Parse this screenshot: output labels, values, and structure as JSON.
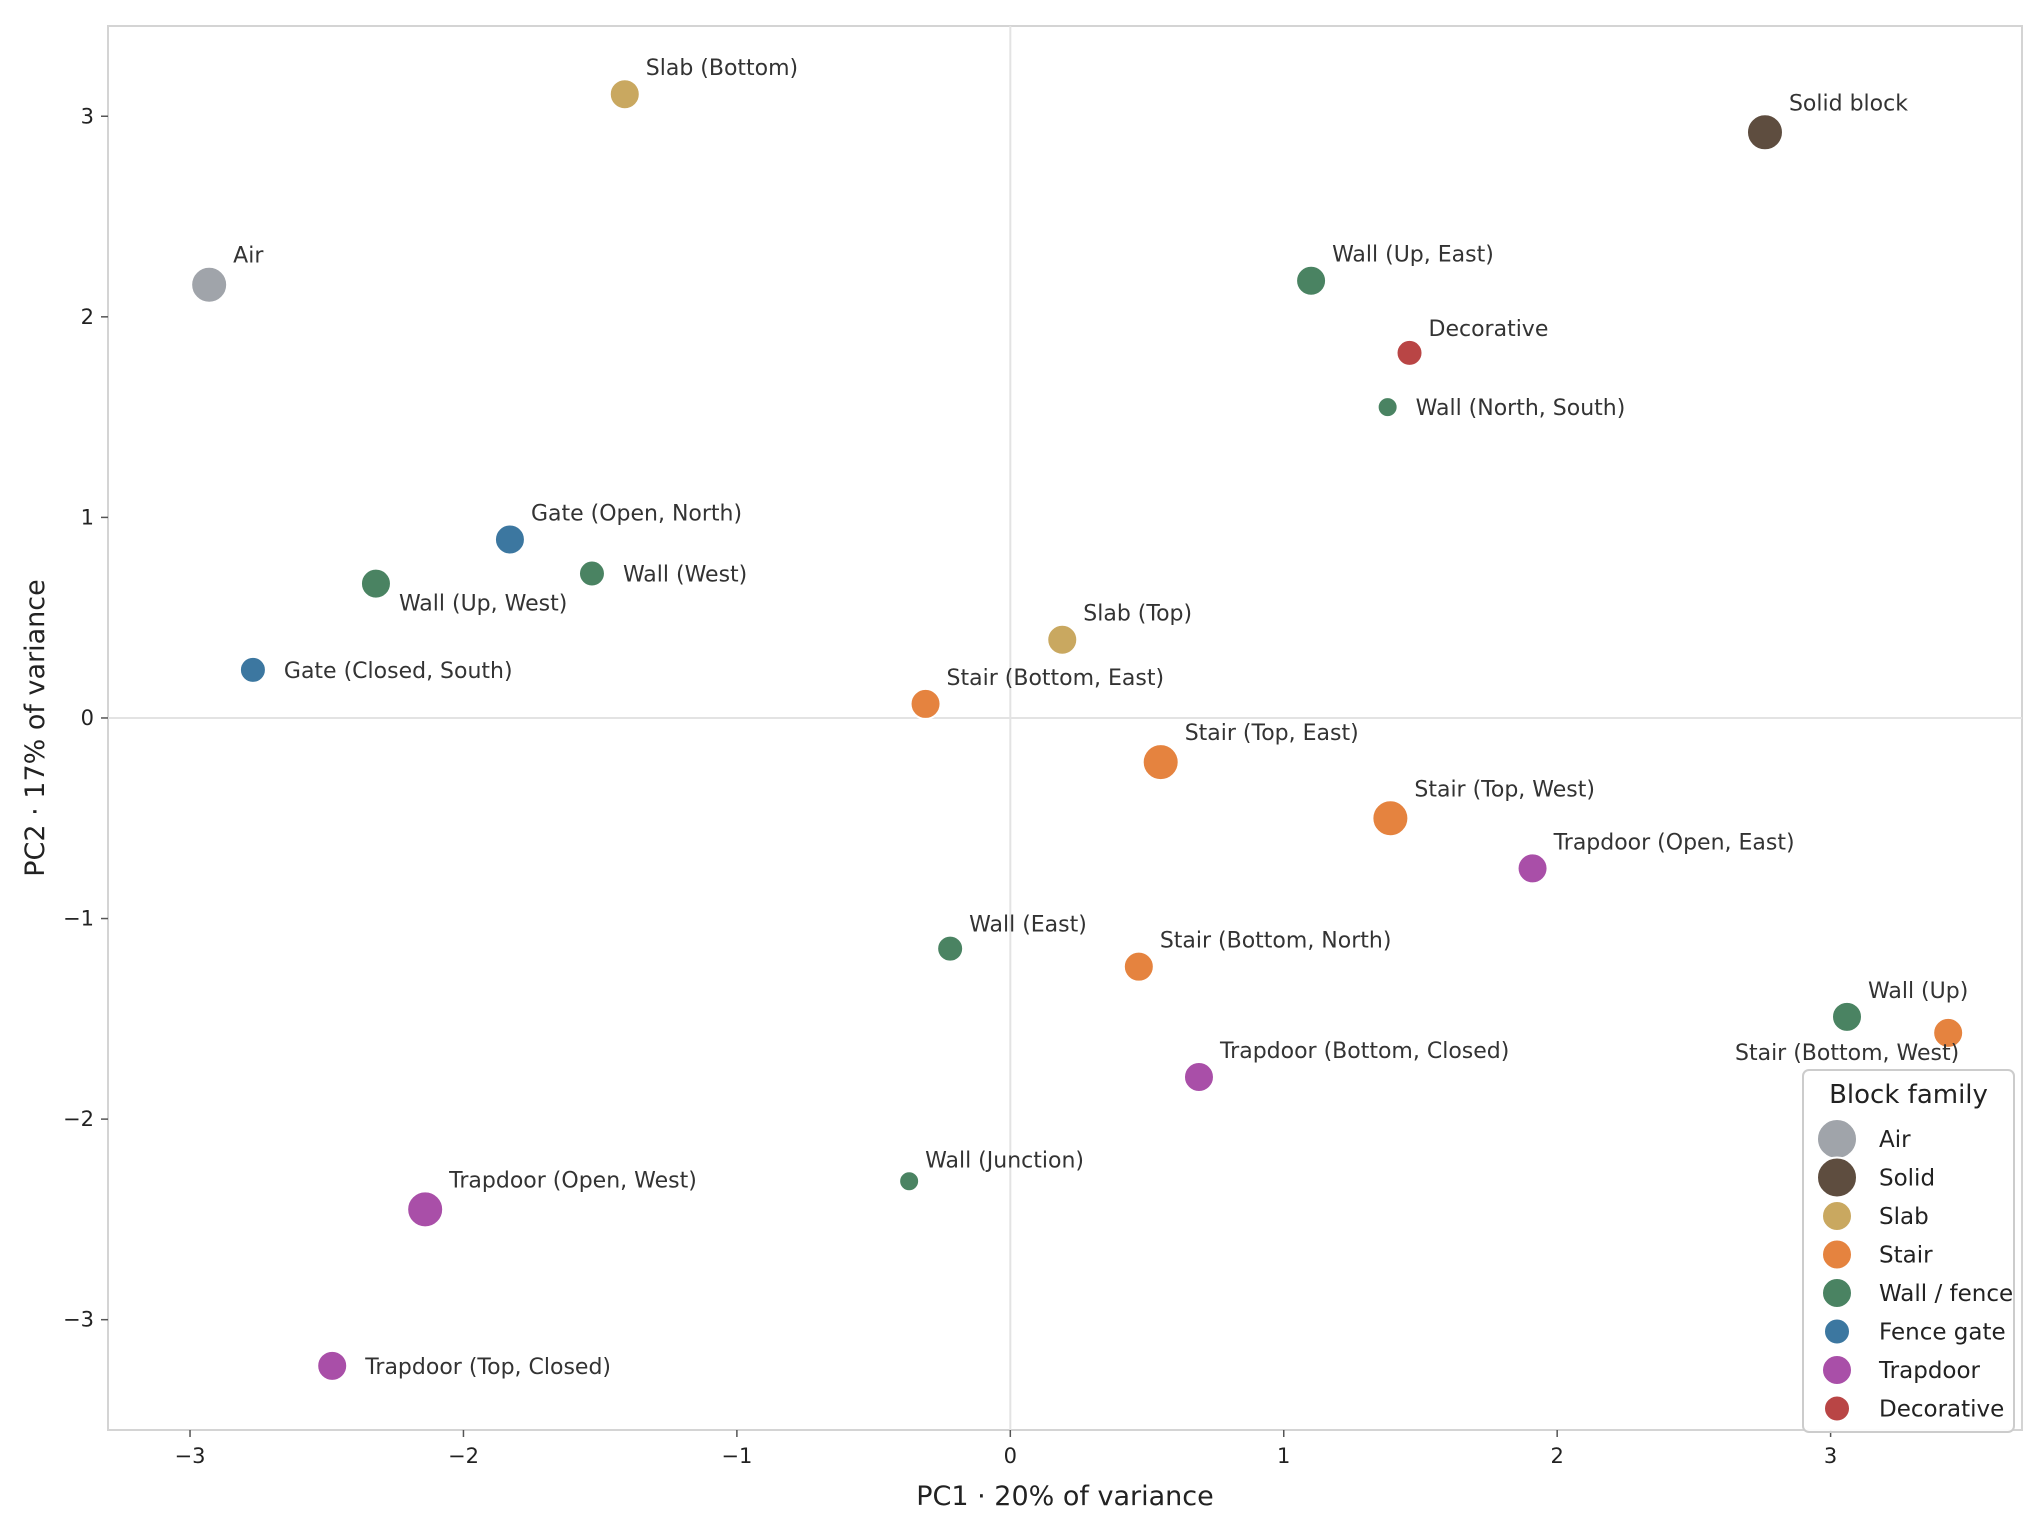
{
  "chart_data": {
    "type": "scatter",
    "title": "",
    "xlabel": "PC1  ·  20% of variance",
    "ylabel": "PC2  ·  17% of variance",
    "xlim": [
      -3.3,
      3.7
    ],
    "ylim": [
      -3.55,
      3.45
    ],
    "xticks": [
      -3,
      -2,
      -1,
      0,
      1,
      2,
      3
    ],
    "yticks": [
      -3,
      -2,
      -1,
      0,
      1,
      2,
      3
    ],
    "tick_labels_x": [
      "−3",
      "−2",
      "−1",
      "0",
      "1",
      "2",
      "3"
    ],
    "tick_labels_y": [
      "−3",
      "−2",
      "−1",
      "0",
      "1",
      "2",
      "3"
    ],
    "grid": false,
    "reference_lines": {
      "x": 0,
      "y": 0
    },
    "legend": {
      "title": "Block family",
      "placement": "bottom-right",
      "entries": [
        {
          "family": "Air",
          "label": "Air",
          "color": "#a0a4aa",
          "size": 3
        },
        {
          "family": "Solid",
          "label": "Solid",
          "color": "#5e4d3f",
          "size": 3
        },
        {
          "family": "Slab",
          "label": "Slab",
          "color": "#c9a860",
          "size": 2
        },
        {
          "family": "Stair",
          "label": "Stair",
          "color": "#e5833f",
          "size": 2
        },
        {
          "family": "Wall",
          "label": "Wall / fence",
          "color": "#4a8362",
          "size": 2
        },
        {
          "family": "Gate",
          "label": "Fence gate",
          "color": "#3c77a0",
          "size": 1
        },
        {
          "family": "Trapdoor",
          "label": "Trapdoor",
          "color": "#a94fa8",
          "size": 2
        },
        {
          "family": "Decorative",
          "label": "Decorative",
          "color": "#b94545",
          "size": 1
        }
      ]
    },
    "points": [
      {
        "label": "Air",
        "x": -2.93,
        "y": 2.16,
        "family": "Air",
        "size": 3,
        "label_pos": "top-right"
      },
      {
        "label": "Solid block",
        "x": 2.76,
        "y": 2.92,
        "family": "Solid",
        "size": 3,
        "label_pos": "top-right"
      },
      {
        "label": "Slab (Bottom)",
        "x": -1.41,
        "y": 3.11,
        "family": "Slab",
        "size": 2,
        "label_pos": "top-right"
      },
      {
        "label": "Slab (Top)",
        "x": 0.19,
        "y": 0.39,
        "family": "Slab",
        "size": 2,
        "label_pos": "top-right"
      },
      {
        "label": "Wall (Up, East)",
        "x": 1.1,
        "y": 2.18,
        "family": "Wall",
        "size": 2,
        "label_pos": "top-right"
      },
      {
        "label": "Decorative",
        "x": 1.46,
        "y": 1.82,
        "family": "Decorative",
        "size": 1,
        "label_pos": "top-right"
      },
      {
        "label": "Wall (North, South)",
        "x": 1.38,
        "y": 1.55,
        "family": "Wall",
        "size": 0,
        "label_pos": "right"
      },
      {
        "label": "Gate (Open, North)",
        "x": -1.83,
        "y": 0.89,
        "family": "Gate",
        "size": 2,
        "label_pos": "top-right"
      },
      {
        "label": "Wall (Up, West)",
        "x": -2.32,
        "y": 0.67,
        "family": "Wall",
        "size": 2,
        "label_pos": "bottom-right"
      },
      {
        "label": "Wall (West)",
        "x": -1.53,
        "y": 0.72,
        "family": "Wall",
        "size": 1,
        "label_pos": "right"
      },
      {
        "label": "Gate (Closed, South)",
        "x": -2.77,
        "y": 0.24,
        "family": "Gate",
        "size": 1,
        "label_pos": "right"
      },
      {
        "label": "Stair (Bottom, East)",
        "x": -0.31,
        "y": 0.07,
        "family": "Stair",
        "size": 2,
        "label_pos": "top-right"
      },
      {
        "label": "Stair (Top, East)",
        "x": 0.55,
        "y": -0.22,
        "family": "Stair",
        "size": 3,
        "label_pos": "top-right"
      },
      {
        "label": "Stair (Top, West)",
        "x": 1.39,
        "y": -0.5,
        "family": "Stair",
        "size": 3,
        "label_pos": "top-right"
      },
      {
        "label": "Trapdoor (Open, East)",
        "x": 1.91,
        "y": -0.75,
        "family": "Trapdoor",
        "size": 2,
        "label_pos": "top-right"
      },
      {
        "label": "Wall (East)",
        "x": -0.22,
        "y": -1.15,
        "family": "Wall",
        "size": 1,
        "label_pos": "top-right"
      },
      {
        "label": "Stair (Bottom, North)",
        "x": 0.47,
        "y": -1.24,
        "family": "Stair",
        "size": 2,
        "label_pos": "top-right"
      },
      {
        "label": "Wall (Up)",
        "x": 3.06,
        "y": -1.49,
        "family": "Wall",
        "size": 2,
        "label_pos": "top-right"
      },
      {
        "label": "Stair (Bottom, West)",
        "x": 3.43,
        "y": -1.57,
        "family": "Stair",
        "size": 2,
        "label_pos": "bottom-left"
      },
      {
        "label": "Trapdoor (Bottom, Closed)",
        "x": 0.69,
        "y": -1.79,
        "family": "Trapdoor",
        "size": 2,
        "label_pos": "top-right"
      },
      {
        "label": "Wall (Junction)",
        "x": -0.37,
        "y": -2.31,
        "family": "Wall",
        "size": 0,
        "label_pos": "top-right"
      },
      {
        "label": "Trapdoor (Open, West)",
        "x": -2.14,
        "y": -2.45,
        "family": "Trapdoor",
        "size": 3,
        "label_pos": "top-right"
      },
      {
        "label": "Trapdoor (Top, Closed)",
        "x": -2.48,
        "y": -3.23,
        "family": "Trapdoor",
        "size": 2,
        "label_pos": "right"
      }
    ]
  }
}
